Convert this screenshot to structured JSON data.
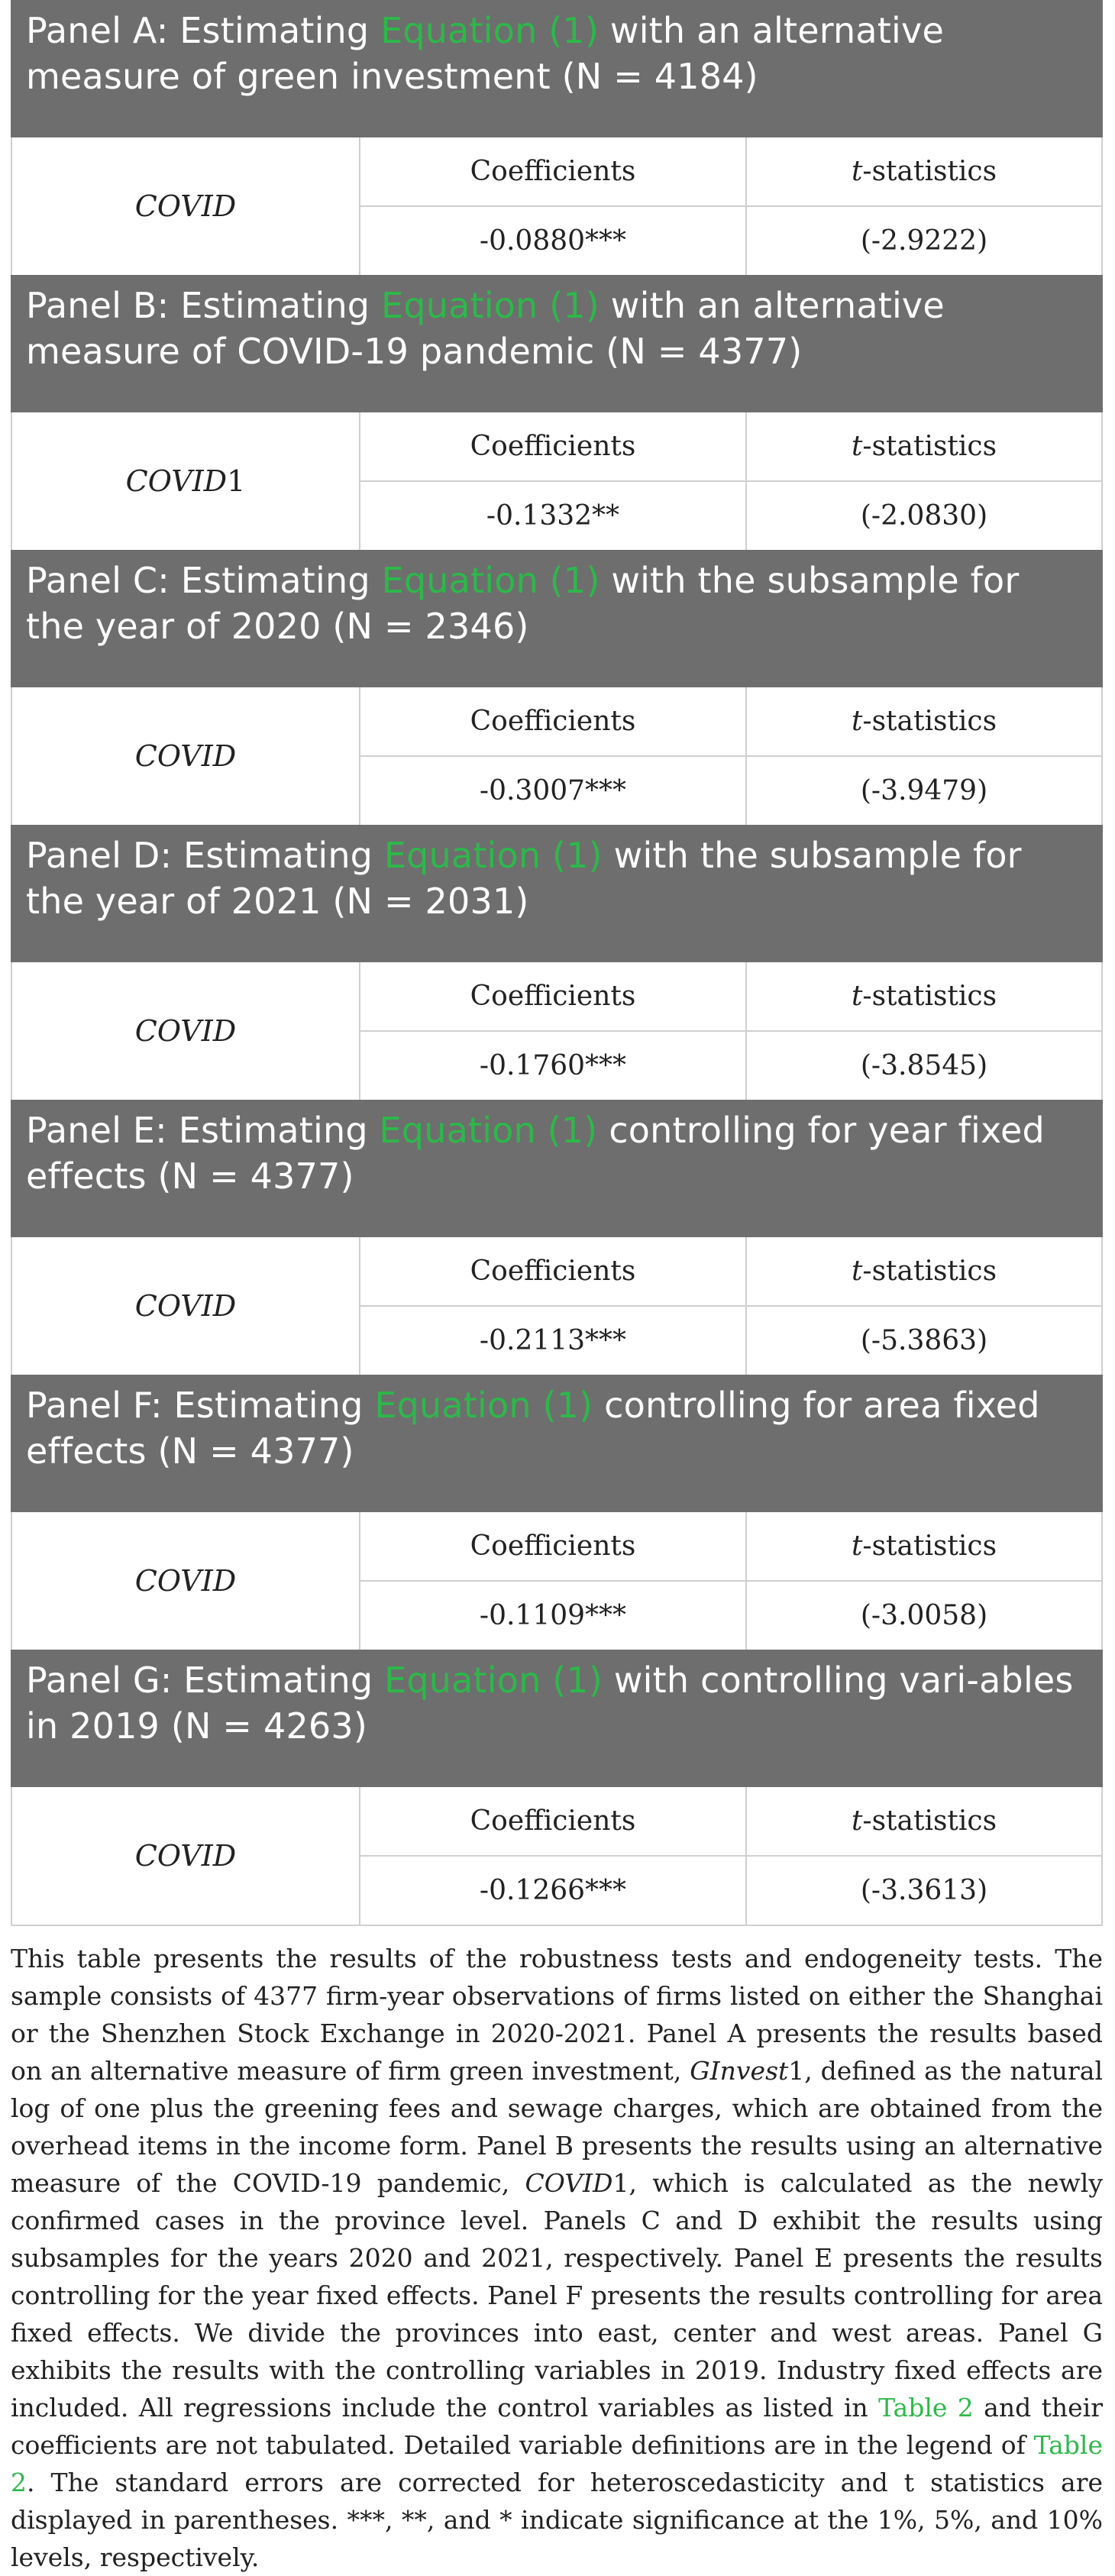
{
  "panels": [
    {
      "header_pre": "Panel A: Estimating ",
      "header_eq": "Equation (1)",
      "header_post": " with an alternative measure of green investment (N = 4184)",
      "variable": "COVID",
      "variable_suffix": "",
      "col1_label": "Coefficients",
      "col2_label_italic": "t",
      "col2_label_rest": "-statistics",
      "coefficient": "-0.0880***",
      "t_statistic": "(-2.9222)"
    },
    {
      "header_pre": "Panel B: Estimating  ",
      "header_eq": "Equation (1)",
      "header_post": " with an alternative measure of COVID-19 pandemic (N = 4377)",
      "variable": "COVID",
      "variable_suffix": "1",
      "col1_label": "Coefficients",
      "col2_label_italic": "t",
      "col2_label_rest": "-statistics",
      "coefficient": "-0.1332**",
      "t_statistic": "(-2.0830)"
    },
    {
      "header_pre": "Panel C: Estimating ",
      "header_eq": "Equation (1)",
      "header_post": " with the subsample for the year of 2020 (N = 2346)",
      "variable": "COVID",
      "variable_suffix": "",
      "col1_label": "Coefficients",
      "col2_label_italic": "t",
      "col2_label_rest": "-statistics",
      "coefficient": "-0.3007***",
      "t_statistic": "(-3.9479)"
    },
    {
      "header_pre": "Panel D: Estimating ",
      "header_eq": "Equation (1)",
      "header_post": " with the subsample for the year of 2021 (N = 2031)",
      "variable": "COVID",
      "variable_suffix": "",
      "col1_label": "Coefficients",
      "col2_label_italic": "t",
      "col2_label_rest": "-statistics",
      "coefficient": "-0.1760***",
      "t_statistic": "(-3.8545)"
    },
    {
      "header_pre": "Panel E: Estimating ",
      "header_eq": "Equation (1)",
      "header_post": " controlling for year fixed effects (N = 4377)",
      "variable": "COVID",
      "variable_suffix": "",
      "col1_label": "Coefficients",
      "col2_label_italic": "t",
      "col2_label_rest": "-statistics",
      "coefficient": "-0.2113***",
      "t_statistic": "(-5.3863)"
    },
    {
      "header_pre": "Panel F: Estimating ",
      "header_eq": "Equation (1)",
      "header_post": " controlling for area fixed effects (N = 4377)",
      "variable": "COVID",
      "variable_suffix": "",
      "col1_label": "Coefficients",
      "col2_label_italic": "t",
      "col2_label_rest": "-statistics",
      "coefficient": "-0.1109***",
      "t_statistic": "(-3.0058)"
    },
    {
      "header_pre": "Panel G: Estimating ",
      "header_eq": "Equation (1)",
      "header_post": " with controlling vari-ables in 2019 (N = 4263)",
      "variable": "COVID",
      "variable_suffix": "",
      "col1_label": "Coefficients",
      "col2_label_italic": "t",
      "col2_label_rest": "-statistics",
      "coefficient": "-0.1266***",
      "t_statistic": "(-3.3613)"
    }
  ],
  "footnote": {
    "p1": "This table presents the results of the robustness tests and endogeneity tests. The sample consists of 4377 firm-year observations of firms listed on either the Shanghai or the Shenzhen Stock Exchange in 2020-2021. Panel A presents the results based on an alternative measure of firm green investment, ",
    "ginvest": "GInvest",
    "ginvest_suffix": "1",
    "p2": ", defined as the natural log of one plus the greening fees and sewage charges, which are obtained from the overhead items in the income form. Panel B presents the results using an alternative measure of the COVID-19 pandemic, ",
    "covid": "COVID",
    "covid_suffix": "1",
    "p3": ", which is calculated as the newly confirmed cases in the province level. Panels C and D exhibit the results using subsamples for the years 2020 and 2021, respectively. Panel E presents the results controlling for the year fixed effects. Panel F presents the results controlling for area fixed effects. We divide the provinces into east, center and west areas. Panel G exhibits the results with the controlling variables in 2019. Industry fixed effects are included. All regressions include the control variables as listed in ",
    "link1": "Table 2",
    "p4": " and their coefficients are not tabulated. Detailed variable definitions are in the legend of ",
    "link2": "Table 2",
    "p5": ". The standard errors are corrected for heteroscedasticity and t statistics are displayed in parentheses. ***, **, and * indicate significance at the 1%, 5%, and 10% levels, respectively."
  },
  "colors": {
    "header_bg": "#6e6e6e",
    "equation_link": "#2db84a",
    "rule": "#cfcfcf"
  }
}
